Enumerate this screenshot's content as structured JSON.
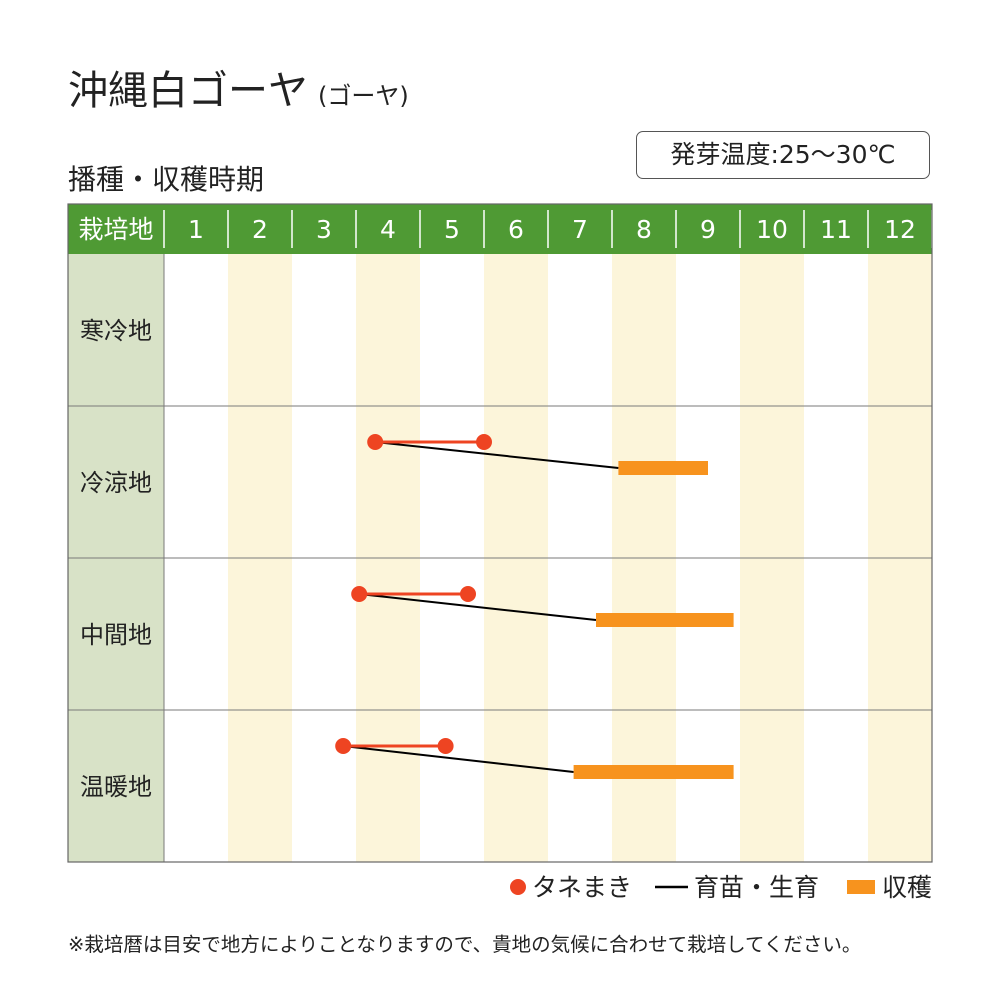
{
  "page": {
    "title": "沖縄白ゴーヤ",
    "subtitle": "(ゴーヤ)",
    "temperature": "発芽温度:25〜30℃",
    "section": "播種・収穫時期",
    "footnote": "※栽培暦は目安で地方によりことなりますので、貴地の気候に合わせて栽培してください。"
  },
  "chart_data": {
    "type": "gantt",
    "header_label": "栽培地",
    "months": [
      "1",
      "2",
      "3",
      "4",
      "5",
      "6",
      "7",
      "8",
      "9",
      "10",
      "11",
      "12"
    ],
    "month_range": [
      1,
      13
    ],
    "legend": [
      {
        "key": "sowing",
        "label": "タネまき",
        "color": "#ee4422"
      },
      {
        "key": "growing",
        "label": "育苗・生育",
        "color": "#000000"
      },
      {
        "key": "harvest",
        "label": "収穫",
        "color": "#f7931e"
      }
    ],
    "colors": {
      "header_bg": "#4f9a34",
      "label_bg": "#d8e2c7",
      "stripe": "#fcf5da",
      "sowing": "#ee4422",
      "harvest": "#f7931e"
    },
    "regions": [
      {
        "name": "寒冷地"
      },
      {
        "name": "冷涼地",
        "sowing": [
          4.3,
          6.0
        ],
        "harvest": [
          8.1,
          9.5
        ]
      },
      {
        "name": "中間地",
        "sowing": [
          4.05,
          5.75
        ],
        "harvest": [
          7.75,
          9.9
        ]
      },
      {
        "name": "温暖地",
        "sowing": [
          3.8,
          5.4
        ],
        "harvest": [
          7.4,
          9.9
        ]
      }
    ]
  }
}
